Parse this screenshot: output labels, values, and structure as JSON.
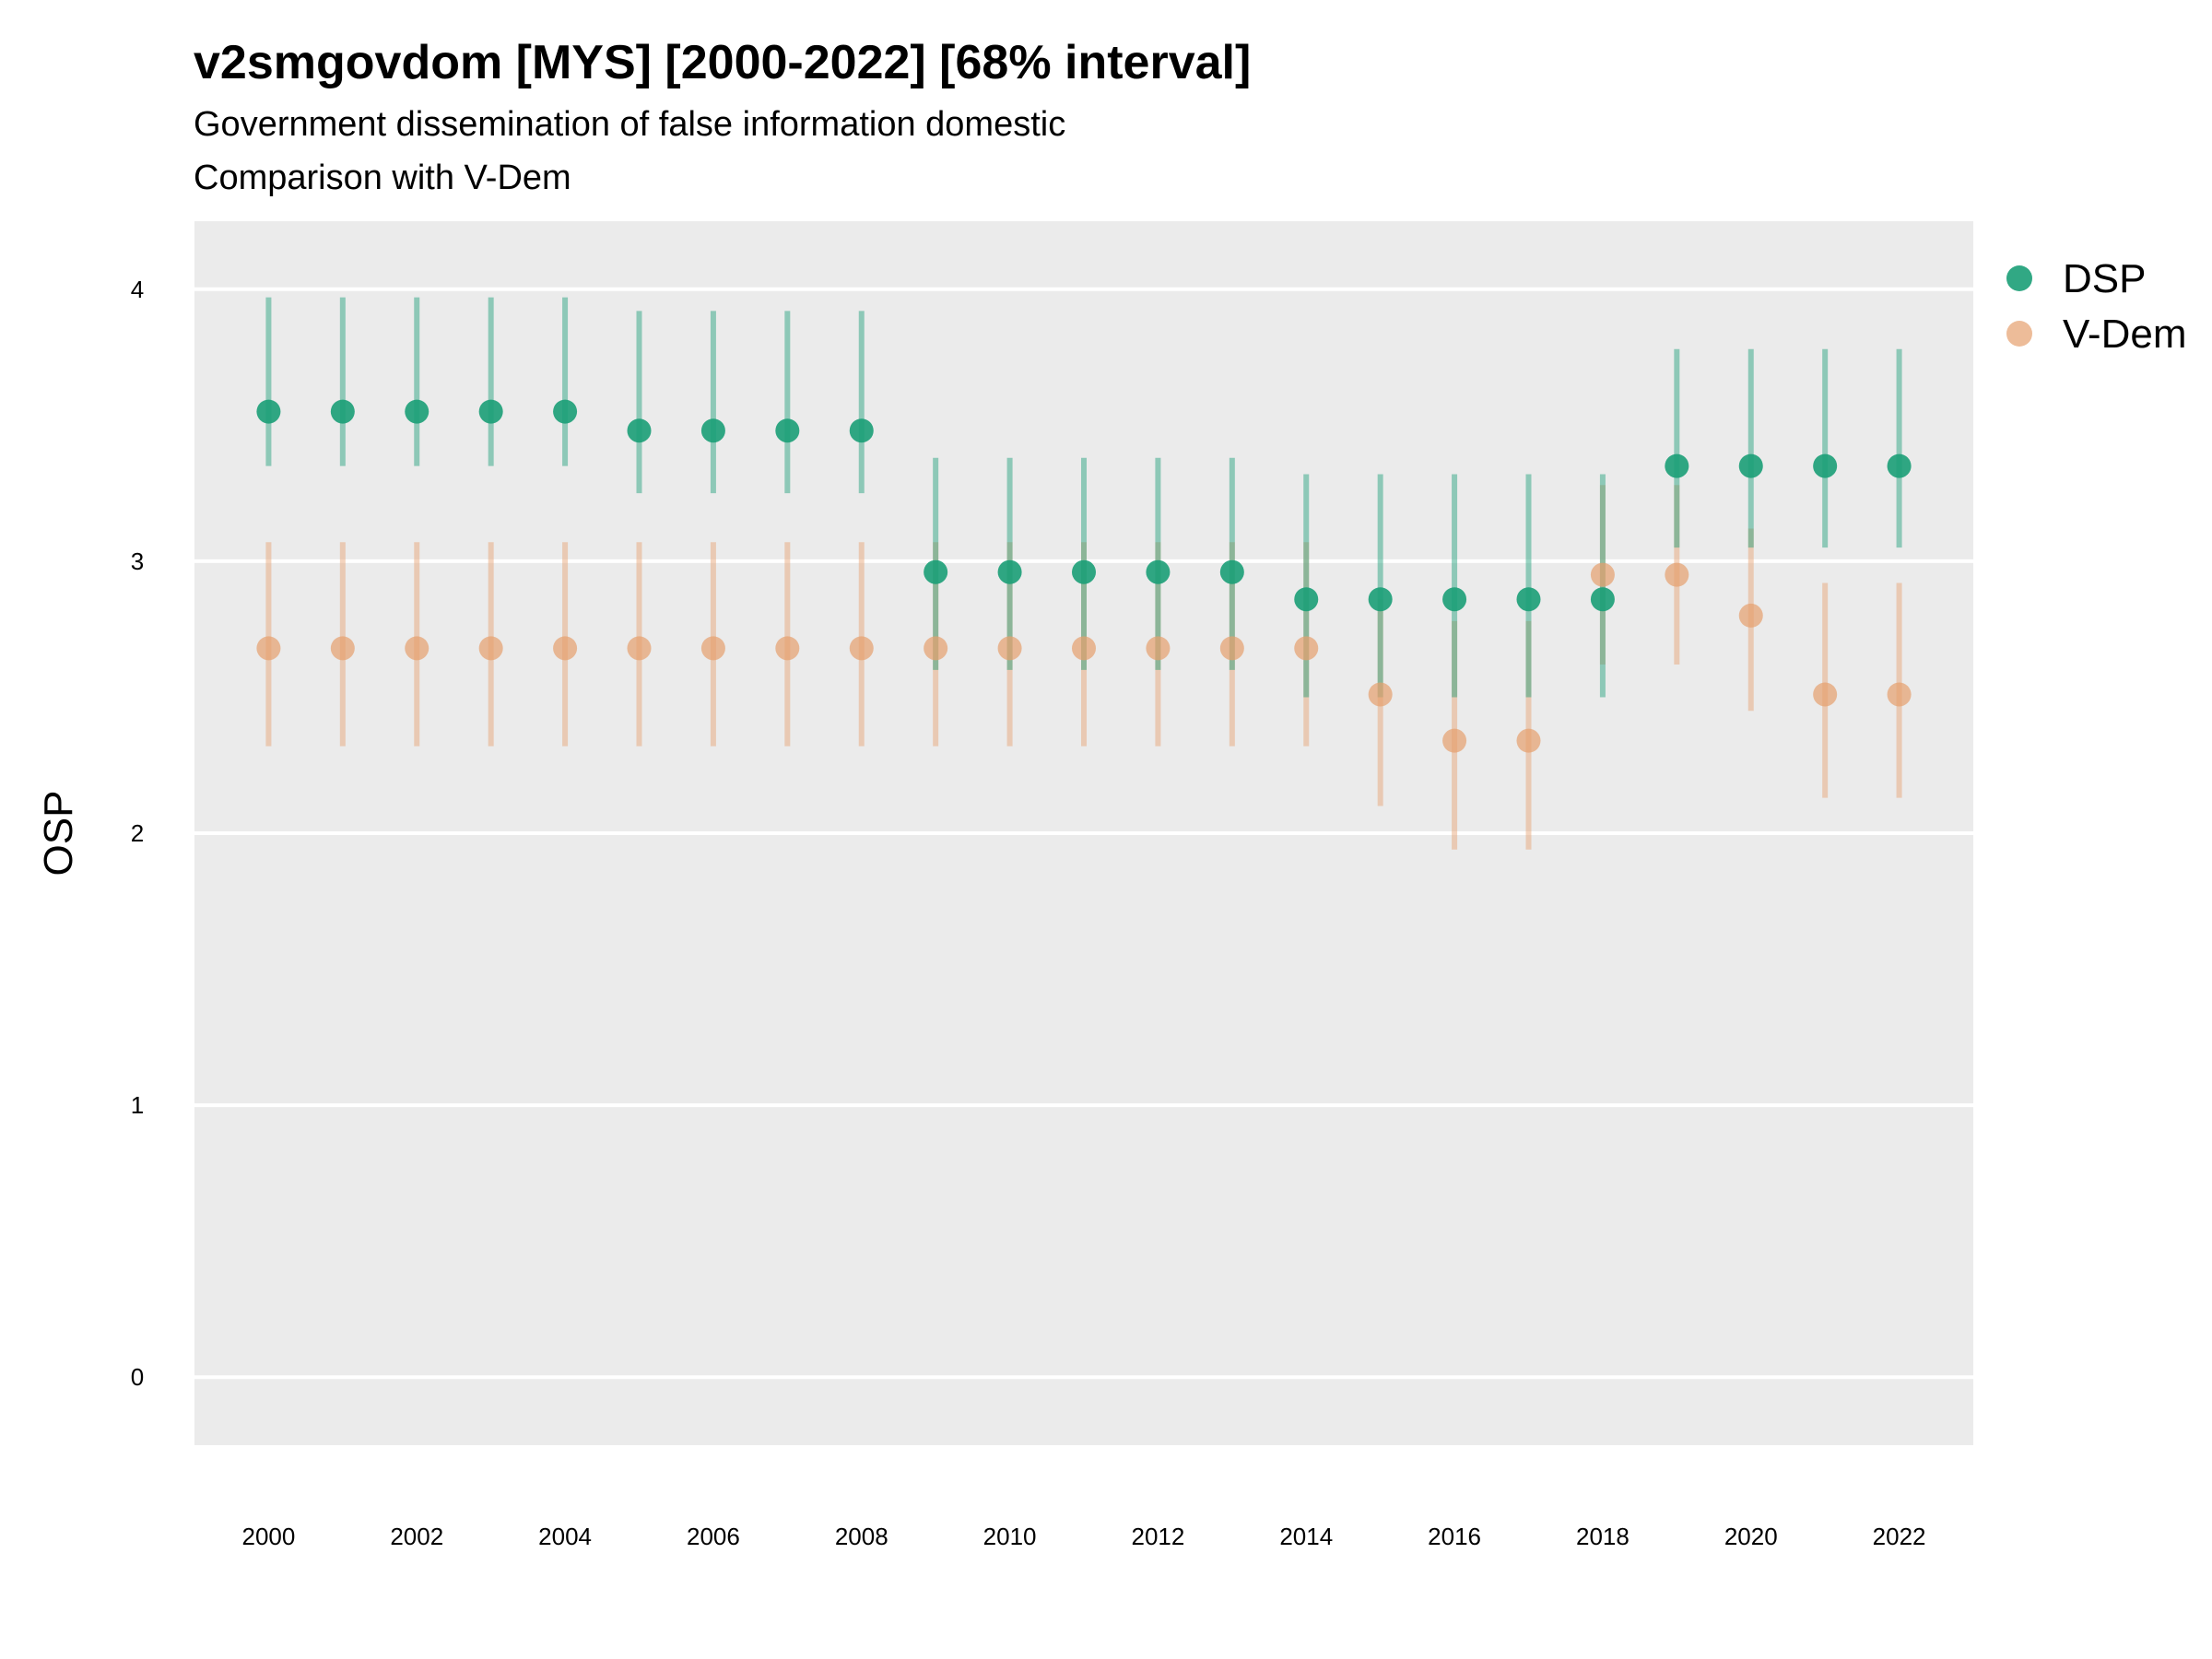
{
  "header": {
    "title": "v2smgovdom [MYS] [2000-2022] [68% interval]",
    "subtitle": "Government dissemination of false information domestic",
    "caption": "Comparison with V-Dem"
  },
  "colors": {
    "panel": "#ebebeb",
    "grid": "#ffffff",
    "dsp": "#1b9e77",
    "vdem": "#e6a06e"
  },
  "chart_data": {
    "type": "scatter",
    "title": "v2smgovdom [MYS] [2000-2022] [68% interval]",
    "ylabel": "OSP",
    "xlabel": "",
    "ylim": [
      -0.25,
      4.25
    ],
    "xlim": [
      1999.0,
      2023.0
    ],
    "yticks": [
      0,
      1,
      2,
      3,
      4
    ],
    "xticks": [
      2000,
      2002,
      2004,
      2006,
      2008,
      2010,
      2012,
      2014,
      2016,
      2018,
      2020,
      2022
    ],
    "grid": true,
    "legend_position": "right",
    "x": [
      2000,
      2001,
      2002,
      2003,
      2004,
      2005,
      2006,
      2007,
      2008,
      2009,
      2010,
      2011,
      2012,
      2013,
      2014,
      2015,
      2016,
      2017,
      2018,
      2019,
      2020,
      2021,
      2022
    ],
    "series": [
      {
        "name": "DSP",
        "color": "#1b9e77",
        "values": [
          3.55,
          3.55,
          3.55,
          3.55,
          3.55,
          3.48,
          3.48,
          3.48,
          3.48,
          2.96,
          2.96,
          2.96,
          2.96,
          2.96,
          2.86,
          2.86,
          2.86,
          2.86,
          2.86,
          3.35,
          3.35,
          3.35,
          3.35
        ],
        "lower": [
          3.35,
          3.35,
          3.35,
          3.35,
          3.35,
          3.25,
          3.25,
          3.25,
          3.25,
          2.6,
          2.6,
          2.6,
          2.6,
          2.6,
          2.5,
          2.5,
          2.5,
          2.5,
          2.5,
          3.05,
          3.05,
          3.05,
          3.05
        ],
        "upper": [
          3.97,
          3.97,
          3.97,
          3.97,
          3.97,
          3.92,
          3.92,
          3.92,
          3.92,
          3.38,
          3.38,
          3.38,
          3.38,
          3.38,
          3.32,
          3.32,
          3.32,
          3.32,
          3.32,
          3.78,
          3.78,
          3.78,
          3.78
        ]
      },
      {
        "name": "V-Dem",
        "color": "#e6a06e",
        "values": [
          2.68,
          2.68,
          2.68,
          2.68,
          2.68,
          2.68,
          2.68,
          2.68,
          2.68,
          2.68,
          2.68,
          2.68,
          2.68,
          2.68,
          2.68,
          2.51,
          2.34,
          2.34,
          2.95,
          2.95,
          2.8,
          2.51,
          2.51
        ],
        "lower": [
          2.32,
          2.32,
          2.32,
          2.32,
          2.32,
          2.32,
          2.32,
          2.32,
          2.32,
          2.32,
          2.32,
          2.32,
          2.32,
          2.32,
          2.32,
          2.1,
          1.94,
          1.94,
          2.62,
          2.62,
          2.45,
          2.13,
          2.13
        ],
        "upper": [
          3.07,
          3.07,
          3.07,
          3.07,
          3.07,
          3.07,
          3.07,
          3.07,
          3.07,
          3.07,
          3.07,
          3.07,
          3.07,
          3.07,
          3.07,
          2.86,
          2.78,
          2.78,
          3.28,
          3.28,
          3.12,
          2.92,
          2.92
        ]
      }
    ]
  }
}
